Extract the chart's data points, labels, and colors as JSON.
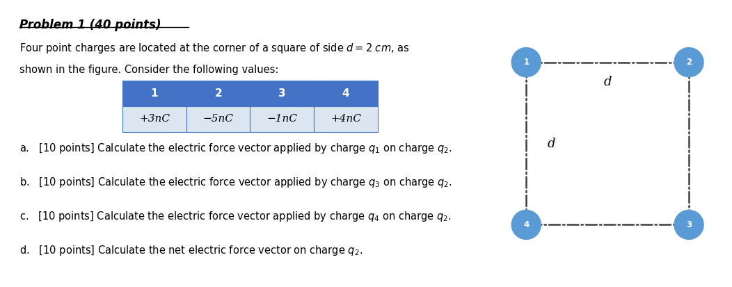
{
  "title": "Problem 1 (40 points)",
  "intro_line1": "Four point charges are located at the corner of a square of side $d = 2$ $cm$, as",
  "intro_line2": "shown in the figure. Consider the following values:",
  "table_headers": [
    "1",
    "2",
    "3",
    "4"
  ],
  "table_values": [
    "+3nC",
    "−5nC",
    "−1nC",
    "+4nC"
  ],
  "table_header_bg": "#4472C4",
  "table_header_color": "#ffffff",
  "table_value_bg": "#dce6f1",
  "table_border_color": "#4472C4",
  "questions": [
    "a.   [10 points] Calculate the electric force vector applied by charge $q_1$ on charge $q_2$.",
    "b.   [10 points] Calculate the electric force vector applied by charge $q_3$ on charge $q_2$.",
    "c.   [10 points] Calculate the electric force vector applied by charge $q_4$ on charge $q_2$.",
    "d.   [10 points] Calculate the net electric force vector on charge $q_2$."
  ],
  "node_color": "#5B9BD5",
  "d_label_top": "d",
  "d_label_left": "d",
  "background_color": "#ffffff",
  "line_color": "#404040",
  "line_width": 1.8
}
